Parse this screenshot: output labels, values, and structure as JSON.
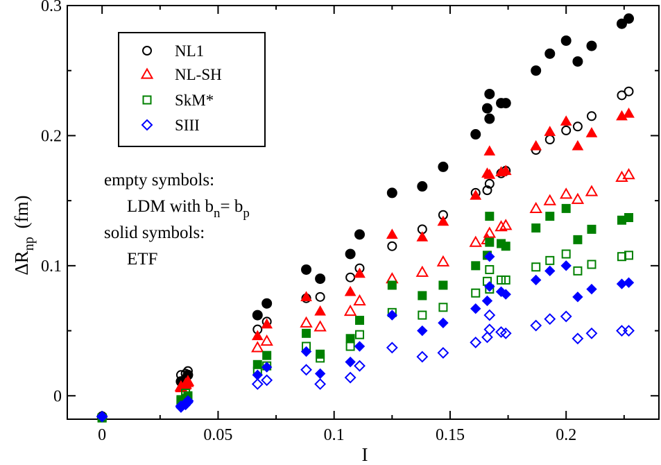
{
  "chart_data": {
    "type": "scatter",
    "xlabel": "I",
    "ylabel": "ΔR",
    "ylabel_sub": "np",
    "ylabel_unit": "(fm)",
    "xlim": [
      -0.015,
      0.24
    ],
    "ylim": [
      -0.018,
      0.3
    ],
    "xticks": [
      0,
      0.05,
      0.1,
      0.15,
      0.2
    ],
    "xtick_labels": [
      "0",
      "0.05",
      "0.1",
      "0.15",
      "0.2"
    ],
    "yticks": [
      0,
      0.1,
      0.2,
      0.3
    ],
    "ytick_labels": [
      "0",
      "0.1",
      "0.2",
      "0.3"
    ],
    "grid": false,
    "legend_position": "top-left",
    "annotations": {
      "empty_label": "empty symbols:",
      "ldm_prefix": "LDM with b",
      "ldm_sub_n": "n",
      "ldm_mid": "= b",
      "ldm_sub_p": "p",
      "solid_label": "solid symbols:",
      "etf_label": "ETF"
    },
    "series": [
      {
        "name": "NL1",
        "marker": "circle",
        "color": "#000000",
        "empty": [
          [
            0,
            -0.016
          ],
          [
            0.034,
            0.016
          ],
          [
            0.036,
            0.017
          ],
          [
            0.037,
            0.019
          ],
          [
            0.067,
            0.051
          ],
          [
            0.071,
            0.057
          ],
          [
            0.088,
            0.075
          ],
          [
            0.094,
            0.076
          ],
          [
            0.107,
            0.091
          ],
          [
            0.111,
            0.098
          ],
          [
            0.125,
            0.115
          ],
          [
            0.138,
            0.128
          ],
          [
            0.147,
            0.139
          ],
          [
            0.161,
            0.156
          ],
          [
            0.166,
            0.158
          ],
          [
            0.167,
            0.163
          ],
          [
            0.172,
            0.171
          ],
          [
            0.174,
            0.173
          ],
          [
            0.187,
            0.189
          ],
          [
            0.193,
            0.197
          ],
          [
            0.2,
            0.204
          ],
          [
            0.205,
            0.207
          ],
          [
            0.211,
            0.215
          ],
          [
            0.224,
            0.231
          ],
          [
            0.227,
            0.234
          ]
        ],
        "solid": [
          [
            0,
            -0.016
          ],
          [
            0.034,
            0.011
          ],
          [
            0.036,
            0.013
          ],
          [
            0.037,
            0.016
          ],
          [
            0.067,
            0.062
          ],
          [
            0.071,
            0.071
          ],
          [
            0.088,
            0.097
          ],
          [
            0.094,
            0.09
          ],
          [
            0.107,
            0.109
          ],
          [
            0.111,
            0.124
          ],
          [
            0.125,
            0.156
          ],
          [
            0.138,
            0.161
          ],
          [
            0.147,
            0.176
          ],
          [
            0.161,
            0.201
          ],
          [
            0.166,
            0.221
          ],
          [
            0.167,
            0.232
          ],
          [
            0.167,
            0.213
          ],
          [
            0.172,
            0.225
          ],
          [
            0.174,
            0.225
          ],
          [
            0.187,
            0.25
          ],
          [
            0.193,
            0.263
          ],
          [
            0.2,
            0.273
          ],
          [
            0.205,
            0.257
          ],
          [
            0.211,
            0.269
          ],
          [
            0.224,
            0.286
          ],
          [
            0.227,
            0.29
          ]
        ]
      },
      {
        "name": "NL-SH",
        "marker": "triangle",
        "color": "#ff0000",
        "empty": [
          [
            0.034,
            0.007
          ],
          [
            0.036,
            0.009
          ],
          [
            0.037,
            0.011
          ],
          [
            0.067,
            0.037
          ],
          [
            0.071,
            0.042
          ],
          [
            0.088,
            0.056
          ],
          [
            0.094,
            0.053
          ],
          [
            0.107,
            0.065
          ],
          [
            0.111,
            0.073
          ],
          [
            0.125,
            0.09
          ],
          [
            0.138,
            0.095
          ],
          [
            0.147,
            0.103
          ],
          [
            0.161,
            0.118
          ],
          [
            0.166,
            0.12
          ],
          [
            0.167,
            0.125
          ],
          [
            0.172,
            0.13
          ],
          [
            0.174,
            0.131
          ],
          [
            0.187,
            0.144
          ],
          [
            0.193,
            0.15
          ],
          [
            0.2,
            0.155
          ],
          [
            0.205,
            0.151
          ],
          [
            0.211,
            0.157
          ],
          [
            0.224,
            0.168
          ],
          [
            0.227,
            0.17
          ]
        ],
        "solid": [
          [
            0.034,
            0.006
          ],
          [
            0.036,
            0.008
          ],
          [
            0.037,
            0.01
          ],
          [
            0.067,
            0.046
          ],
          [
            0.071,
            0.055
          ],
          [
            0.088,
            0.076
          ],
          [
            0.094,
            0.065
          ],
          [
            0.107,
            0.08
          ],
          [
            0.111,
            0.094
          ],
          [
            0.125,
            0.124
          ],
          [
            0.138,
            0.122
          ],
          [
            0.147,
            0.134
          ],
          [
            0.161,
            0.154
          ],
          [
            0.166,
            0.171
          ],
          [
            0.167,
            0.188
          ],
          [
            0.167,
            0.17
          ],
          [
            0.172,
            0.172
          ],
          [
            0.174,
            0.173
          ],
          [
            0.187,
            0.192
          ],
          [
            0.193,
            0.203
          ],
          [
            0.2,
            0.211
          ],
          [
            0.205,
            0.192
          ],
          [
            0.211,
            0.202
          ],
          [
            0.224,
            0.215
          ],
          [
            0.227,
            0.217
          ]
        ]
      },
      {
        "name": "SkM*",
        "marker": "square",
        "color": "#008000",
        "empty": [
          [
            0,
            -0.017
          ],
          [
            0.034,
            -0.003
          ],
          [
            0.036,
            0.002
          ],
          [
            0.037,
            0.0
          ],
          [
            0.067,
            0.019
          ],
          [
            0.071,
            0.023
          ],
          [
            0.088,
            0.038
          ],
          [
            0.094,
            0.029
          ],
          [
            0.107,
            0.038
          ],
          [
            0.111,
            0.047
          ],
          [
            0.125,
            0.064
          ],
          [
            0.138,
            0.062
          ],
          [
            0.147,
            0.068
          ],
          [
            0.161,
            0.079
          ],
          [
            0.166,
            0.088
          ],
          [
            0.167,
            0.097
          ],
          [
            0.167,
            0.082
          ],
          [
            0.172,
            0.089
          ],
          [
            0.174,
            0.089
          ],
          [
            0.187,
            0.099
          ],
          [
            0.193,
            0.104
          ],
          [
            0.2,
            0.109
          ],
          [
            0.205,
            0.096
          ],
          [
            0.211,
            0.101
          ],
          [
            0.224,
            0.107
          ],
          [
            0.227,
            0.108
          ]
        ],
        "solid": [
          [
            0,
            -0.017
          ],
          [
            0.034,
            -0.004
          ],
          [
            0.036,
            -0.002
          ],
          [
            0.037,
            -0.001
          ],
          [
            0.067,
            0.024
          ],
          [
            0.071,
            0.031
          ],
          [
            0.088,
            0.048
          ],
          [
            0.094,
            0.032
          ],
          [
            0.107,
            0.044
          ],
          [
            0.111,
            0.058
          ],
          [
            0.125,
            0.085
          ],
          [
            0.138,
            0.077
          ],
          [
            0.147,
            0.085
          ],
          [
            0.161,
            0.1
          ],
          [
            0.166,
            0.108
          ],
          [
            0.167,
            0.138
          ],
          [
            0.167,
            0.118
          ],
          [
            0.172,
            0.117
          ],
          [
            0.174,
            0.115
          ],
          [
            0.187,
            0.129
          ],
          [
            0.193,
            0.138
          ],
          [
            0.2,
            0.144
          ],
          [
            0.205,
            0.12
          ],
          [
            0.211,
            0.128
          ],
          [
            0.224,
            0.135
          ],
          [
            0.227,
            0.137
          ]
        ]
      },
      {
        "name": "SIII",
        "marker": "diamond",
        "color": "#0000ff",
        "empty": [
          [
            0,
            -0.016
          ],
          [
            0.034,
            -0.008
          ],
          [
            0.036,
            -0.006
          ],
          [
            0.037,
            -0.004
          ],
          [
            0.067,
            0.009
          ],
          [
            0.071,
            0.012
          ],
          [
            0.088,
            0.02
          ],
          [
            0.094,
            0.009
          ],
          [
            0.107,
            0.014
          ],
          [
            0.111,
            0.023
          ],
          [
            0.125,
            0.037
          ],
          [
            0.138,
            0.03
          ],
          [
            0.147,
            0.033
          ],
          [
            0.161,
            0.041
          ],
          [
            0.166,
            0.045
          ],
          [
            0.167,
            0.051
          ],
          [
            0.167,
            0.062
          ],
          [
            0.172,
            0.049
          ],
          [
            0.174,
            0.048
          ],
          [
            0.187,
            0.054
          ],
          [
            0.193,
            0.059
          ],
          [
            0.2,
            0.061
          ],
          [
            0.205,
            0.044
          ],
          [
            0.211,
            0.048
          ],
          [
            0.224,
            0.05
          ],
          [
            0.227,
            0.05
          ]
        ],
        "solid": [
          [
            0,
            -0.016
          ],
          [
            0.034,
            -0.009
          ],
          [
            0.036,
            -0.007
          ],
          [
            0.037,
            -0.005
          ],
          [
            0.067,
            0.016
          ],
          [
            0.071,
            0.022
          ],
          [
            0.088,
            0.034
          ],
          [
            0.094,
            0.017
          ],
          [
            0.107,
            0.026
          ],
          [
            0.111,
            0.038
          ],
          [
            0.125,
            0.062
          ],
          [
            0.138,
            0.05
          ],
          [
            0.147,
            0.056
          ],
          [
            0.161,
            0.067
          ],
          [
            0.166,
            0.073
          ],
          [
            0.167,
            0.107
          ],
          [
            0.167,
            0.084
          ],
          [
            0.172,
            0.08
          ],
          [
            0.174,
            0.078
          ],
          [
            0.187,
            0.089
          ],
          [
            0.193,
            0.096
          ],
          [
            0.2,
            0.1
          ],
          [
            0.205,
            0.076
          ],
          [
            0.211,
            0.082
          ],
          [
            0.224,
            0.086
          ],
          [
            0.227,
            0.087
          ]
        ]
      }
    ]
  }
}
